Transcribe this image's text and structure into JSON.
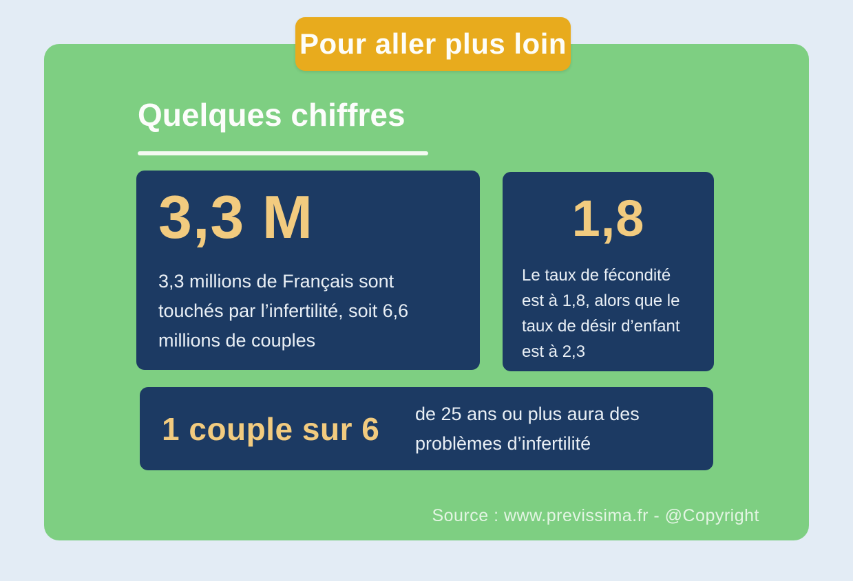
{
  "badge": {
    "label": "Pour aller plus loin"
  },
  "heading": {
    "title": "Quelques chiffres"
  },
  "cards": {
    "card1": {
      "stat": "3,3 M",
      "description": "3,3 millions de Français sont touchés par l’infertilité, soit 6,6 millions de couples"
    },
    "card2": {
      "stat": "1,8",
      "description": "Le taux de fécondité est à 1,8, alors que le taux de désir d’enfant est à 2,3"
    },
    "card3": {
      "stat": "1 couple sur 6",
      "description": "de 25 ans ou plus aura des problèmes d’infertilité"
    }
  },
  "footer": {
    "source": "Source : www.previssima.fr - @Copyright"
  },
  "colors": {
    "background": "#E3ECF5",
    "panel_green": "#7ECF82",
    "badge_yellow": "#E8AB1D",
    "card_navy": "#1C3A63",
    "stat_gold": "#F2CB7F",
    "body_text": "#E9EFF5"
  }
}
